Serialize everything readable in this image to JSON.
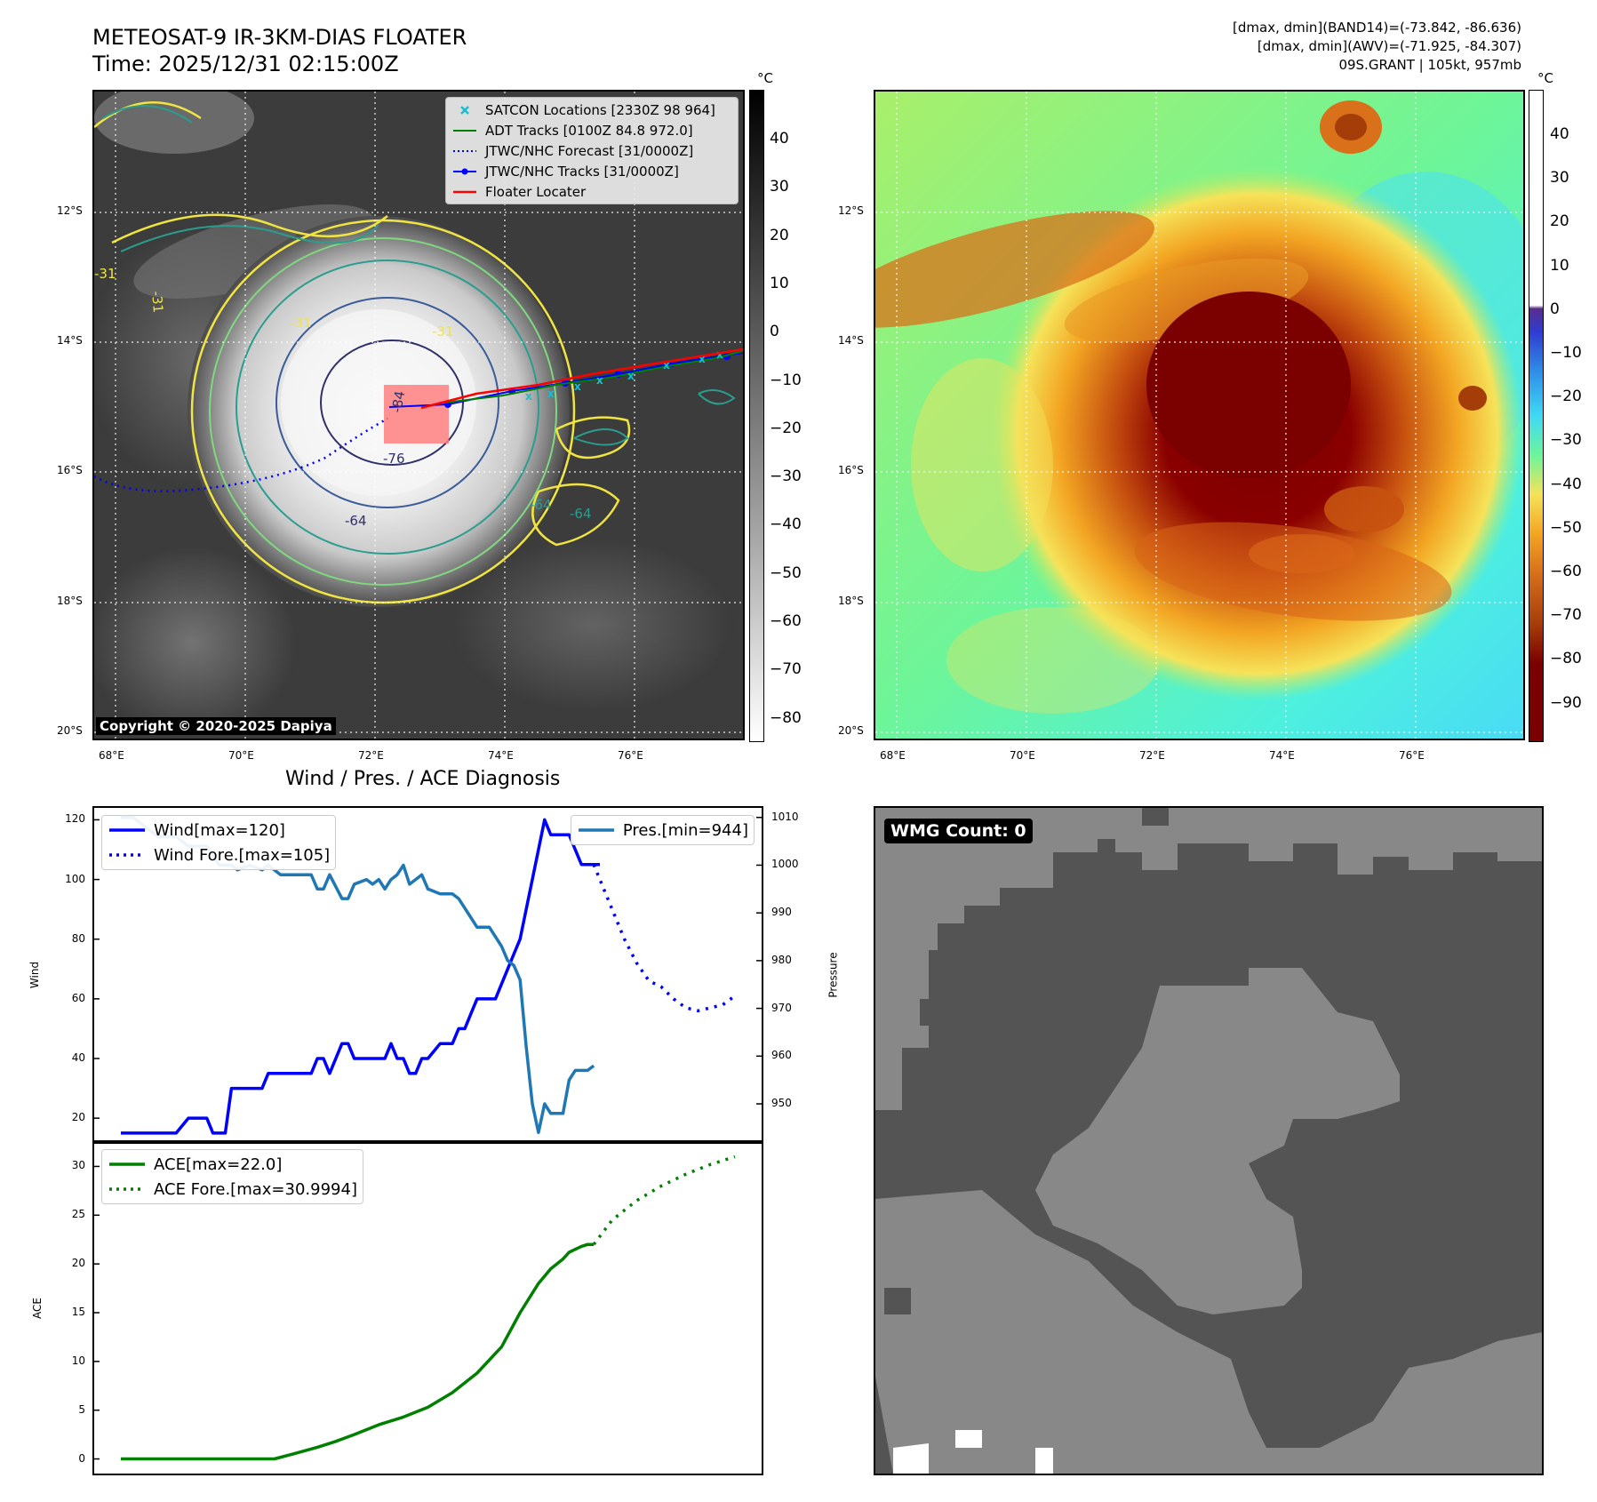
{
  "header": {
    "title_line1": "METEOSAT-9 IR-3KM-DIAS FLOATER",
    "title_line2": "Time: 2025/12/31 02:15:00Z",
    "band14_range": "[dmax, dmin](BAND14)=(-73.842, -86.636)",
    "awv_range": "[dmax, dmin](AWV)=(-71.925, -84.307)",
    "storm_info": "09S.GRANT | 105kt, 957mb"
  },
  "map": {
    "lat_labels": [
      "12°S",
      "14°S",
      "16°S",
      "18°S",
      "20°S"
    ],
    "lon_labels": [
      "68°E",
      "70°E",
      "72°E",
      "74°E",
      "76°E"
    ],
    "copyright": "Copyright © 2020-2025 Dapiya",
    "contour_labels": [
      "-31",
      "-31",
      "-31",
      "-64",
      "-76",
      "-84",
      "-64",
      "-31",
      "-64"
    ],
    "legend": [
      {
        "label": "SATCON Locations [2330Z 98 964]",
        "icon": "x-marker-icon",
        "color": "#17becf"
      },
      {
        "label": "ADT Tracks [0100Z 84.8 972.0]",
        "icon": "solid-line-icon",
        "color": "#008000"
      },
      {
        "label": "JTWC/NHC Forecast [31/0000Z]",
        "icon": "dotted-line-icon",
        "color": "#0000ff"
      },
      {
        "label": "JTWC/NHC Tracks [31/0000Z]",
        "icon": "line-dot-icon",
        "color": "#0000ff"
      },
      {
        "label": "Floater Locater",
        "icon": "solid-line-icon",
        "color": "#ff0000"
      }
    ]
  },
  "colorbars": {
    "unit": "°C",
    "gray_ticks": [
      "40",
      "30",
      "20",
      "10",
      "0",
      "−10",
      "−20",
      "−30",
      "−40",
      "−50",
      "−60",
      "−70",
      "−80"
    ],
    "color_ticks": [
      "40",
      "30",
      "20",
      "10",
      "0",
      "−10",
      "−20",
      "−30",
      "−40",
      "−50",
      "−60",
      "−70",
      "−80",
      "−90"
    ]
  },
  "wmg": {
    "label": "WMG Count: 0"
  },
  "diagnosis": {
    "title": "Wind / Pres. / ACE Diagnosis",
    "wind_axis_label": "Wind",
    "pressure_axis_label": "Pressure",
    "ace_axis_label": "ACE",
    "wind_ticks": [
      "120",
      "100",
      "80",
      "60",
      "40",
      "20"
    ],
    "pressure_ticks": [
      "1010",
      "1000",
      "990",
      "980",
      "970",
      "960",
      "950"
    ],
    "ace_ticks": [
      "30",
      "25",
      "20",
      "15",
      "10",
      "5",
      "0"
    ],
    "legend_wind": "Wind[max=120]",
    "legend_wind_fore": "Wind Fore.[max=105]",
    "legend_pres": "Pres.[min=944]",
    "legend_ace": "ACE[max=22.0]",
    "legend_ace_fore": "ACE Fore.[max=30.9994]"
  },
  "chart_data": [
    {
      "type": "line",
      "title": "Wind / Pres. / ACE Diagnosis",
      "ylabel": "Wind",
      "y2label": "Pressure",
      "ylim": [
        12,
        124
      ],
      "y2lim": [
        942,
        1012
      ],
      "x_index_range": [
        0,
        100
      ],
      "series": [
        {
          "name": "Wind[max=120]",
          "axis": "left",
          "color": "#0000ff",
          "x": [
            0,
            2,
            4,
            6,
            8,
            9,
            11,
            12,
            13,
            14,
            15,
            16,
            17,
            18,
            19,
            21,
            23,
            24,
            26,
            28,
            30,
            31,
            32,
            33,
            34,
            36,
            37,
            38,
            40,
            41,
            42,
            43,
            44,
            45,
            46,
            47,
            48,
            49,
            50,
            52,
            54,
            55,
            56,
            57,
            58,
            59,
            60,
            61,
            62,
            63,
            64,
            65,
            66,
            67,
            68,
            69,
            70,
            71,
            72,
            73,
            74,
            75,
            76,
            77,
            78
          ],
          "values": [
            15,
            15,
            15,
            15,
            15,
            15,
            20,
            20,
            20,
            20,
            15,
            15,
            15,
            30,
            30,
            30,
            30,
            35,
            35,
            35,
            35,
            35,
            40,
            40,
            35,
            45,
            45,
            40,
            40,
            40,
            40,
            40,
            45,
            40,
            40,
            35,
            35,
            40,
            40,
            45,
            45,
            50,
            50,
            55,
            60,
            60,
            60,
            60,
            65,
            70,
            75,
            80,
            90,
            100,
            110,
            120,
            115,
            115,
            115,
            115,
            110,
            105,
            105,
            105,
            105
          ]
        },
        {
          "name": "Wind Fore.[max=105]",
          "axis": "left",
          "color": "#0000ff",
          "dash": "dotted",
          "x": [
            77,
            78,
            80,
            82,
            84,
            86,
            88,
            90,
            92,
            94,
            96,
            98,
            100
          ],
          "values": [
            105,
            100,
            90,
            80,
            72,
            66,
            64,
            60,
            57,
            56,
            57,
            58,
            61
          ]
        },
        {
          "name": "Pres.[min=944]",
          "axis": "right",
          "color": "#1f77b4",
          "x": [
            0,
            2,
            4,
            6,
            8,
            9,
            11,
            12,
            13,
            14,
            15,
            16,
            17,
            18,
            19,
            21,
            23,
            24,
            26,
            28,
            30,
            31,
            32,
            33,
            34,
            36,
            37,
            38,
            40,
            41,
            42,
            43,
            44,
            45,
            46,
            47,
            48,
            49,
            50,
            52,
            54,
            55,
            56,
            57,
            58,
            59,
            60,
            61,
            62,
            63,
            64,
            65,
            66,
            67,
            68,
            69,
            70,
            71,
            72,
            73,
            74,
            75,
            76,
            77
          ],
          "values": [
            1010,
            1010,
            1008,
            1006,
            1006,
            1006,
            1004,
            1004,
            1004,
            1004,
            1002,
            1000,
            1000,
            1000,
            999,
            1000,
            999,
            1000,
            998,
            998,
            998,
            998,
            995,
            995,
            998,
            993,
            993,
            996,
            997,
            996,
            997,
            995,
            997,
            998,
            1000,
            996,
            997,
            998,
            995,
            994,
            994,
            993,
            991,
            989,
            987,
            987,
            987,
            985,
            983,
            980,
            979,
            976,
            962,
            950,
            944,
            950,
            948,
            948,
            948,
            955,
            957,
            957,
            957,
            958
          ]
        }
      ]
    },
    {
      "type": "line",
      "ylabel": "ACE",
      "ylim": [
        -1.5,
        32.5
      ],
      "x_index_range": [
        0,
        100
      ],
      "series": [
        {
          "name": "ACE[max=22.0]",
          "color": "#008000",
          "x": [
            0,
            10,
            20,
            25,
            28,
            32,
            35,
            38,
            42,
            46,
            50,
            54,
            58,
            62,
            65,
            68,
            70,
            72,
            73,
            74,
            75,
            76,
            77
          ],
          "values": [
            0,
            0,
            0,
            0,
            0.5,
            1.2,
            1.8,
            2.5,
            3.5,
            4.3,
            5.3,
            6.8,
            8.8,
            11.5,
            15.0,
            18.0,
            19.5,
            20.5,
            21.2,
            21.5,
            21.8,
            22.0,
            22.0
          ]
        },
        {
          "name": "ACE Fore.[max=30.9994]",
          "color": "#008000",
          "dash": "dotted",
          "x": [
            77,
            80,
            84,
            88,
            92,
            96,
            100
          ],
          "values": [
            22.0,
            24.5,
            26.5,
            28.0,
            29.2,
            30.2,
            31.0
          ]
        }
      ]
    }
  ]
}
